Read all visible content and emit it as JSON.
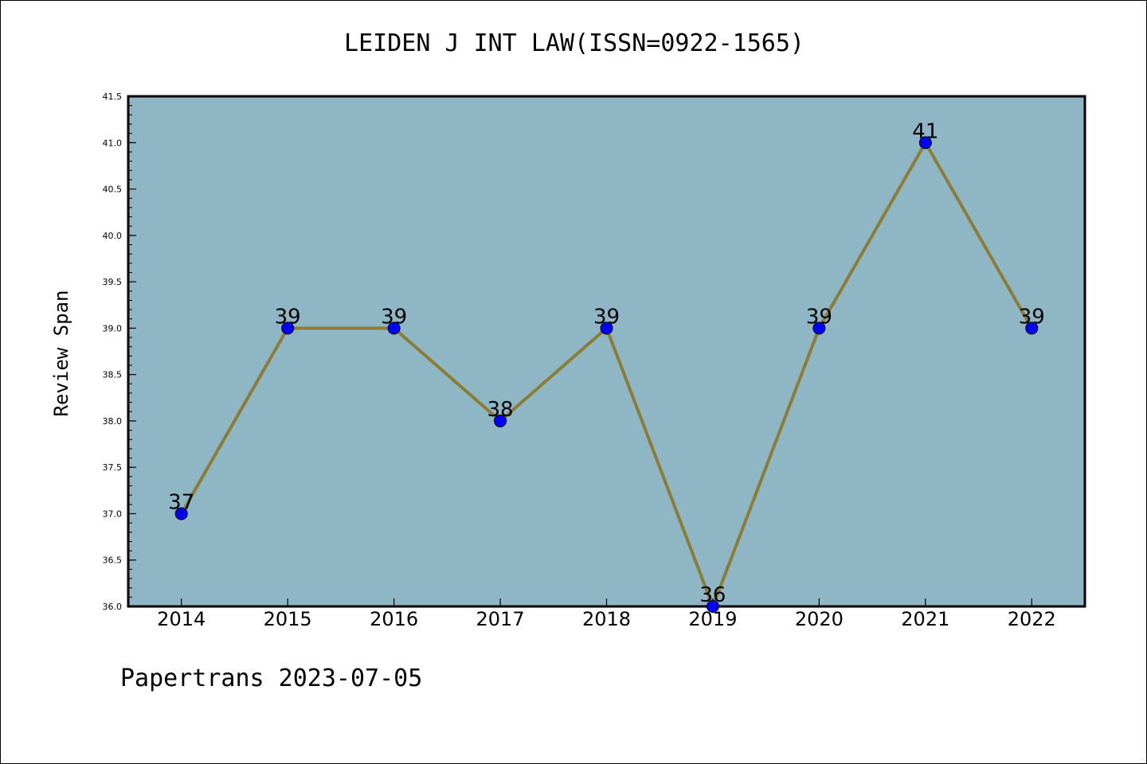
{
  "chart_data": {
    "type": "line",
    "title": "LEIDEN J INT LAW(ISSN=0922-1565)",
    "xlabel": "",
    "ylabel": "Review Span",
    "categories": [
      "2014",
      "2015",
      "2016",
      "2017",
      "2018",
      "2019",
      "2020",
      "2021",
      "2022"
    ],
    "values": [
      37,
      39,
      39,
      38,
      39,
      36,
      39,
      41,
      39
    ],
    "data_labels": [
      "37",
      "39",
      "39",
      "38",
      "39",
      "36",
      "39",
      "41",
      "39"
    ],
    "ylim": [
      36.0,
      41.5
    ],
    "yticks": [
      "36.0",
      "36.5",
      "37.0",
      "37.5",
      "38.0",
      "38.5",
      "39.0",
      "39.5",
      "40.0",
      "40.5",
      "41.0",
      "41.5"
    ],
    "grid": false,
    "legend": "none",
    "colors": {
      "plot_background": "#8fb6c4",
      "line": "#8b7d35",
      "marker": "#0000ff"
    }
  },
  "footer": {
    "text": "Papertrans 2023-07-05"
  }
}
